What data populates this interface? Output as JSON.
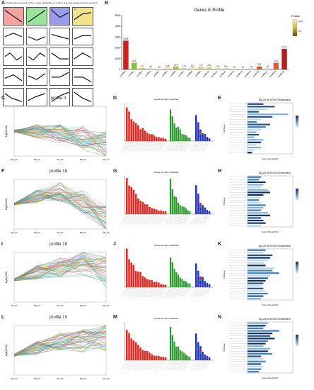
{
  "panelA": {
    "letter": "A",
    "title": "Profiles ordered based on the p-value significance of number of Genes assigned versus expected",
    "tiles": [
      {
        "id": "profile 0",
        "color": "#f4a3a0",
        "num": "0"
      },
      {
        "id": "profile 5",
        "color": "#9be29b",
        "num": "5"
      },
      {
        "id": "profile 16",
        "color": "#9b9bf0",
        "num": "16"
      },
      {
        "id": "profile 19",
        "color": "#f0e48a",
        "num": "19"
      },
      {
        "id": "p4",
        "color": "#ffffff",
        "num": ""
      },
      {
        "id": "p5",
        "color": "#ffffff",
        "num": ""
      },
      {
        "id": "p6",
        "color": "#ffffff",
        "num": ""
      },
      {
        "id": "p7",
        "color": "#ffffff",
        "num": ""
      },
      {
        "id": "p8",
        "color": "#ffffff",
        "num": ""
      },
      {
        "id": "p9",
        "color": "#ffffff",
        "num": ""
      },
      {
        "id": "p10",
        "color": "#ffffff",
        "num": ""
      },
      {
        "id": "p11",
        "color": "#ffffff",
        "num": ""
      },
      {
        "id": "p12",
        "color": "#ffffff",
        "num": ""
      },
      {
        "id": "p13",
        "color": "#ffffff",
        "num": ""
      },
      {
        "id": "p14",
        "color": "#ffffff",
        "num": ""
      },
      {
        "id": "p15",
        "color": "#ffffff",
        "num": ""
      },
      {
        "id": "p16",
        "color": "#ffffff",
        "num": ""
      },
      {
        "id": "p17",
        "color": "#ffffff",
        "num": ""
      },
      {
        "id": "p18",
        "color": "#ffffff",
        "num": ""
      },
      {
        "id": "p19",
        "color": "#ffffff",
        "num": ""
      }
    ]
  },
  "chart_data": {
    "type": "bar",
    "title": "Genes in Profile",
    "ylim": [
      0,
      5000
    ],
    "yticks": [
      0,
      1000,
      2000,
      3000,
      4000,
      5000
    ],
    "legend_title": "Pvalue",
    "legend_ticks": [
      "0.05",
      "0.1"
    ],
    "categories": [
      "profile0",
      "profile1",
      "profile2",
      "profile3",
      "profile4",
      "profile5",
      "profile6",
      "profile7",
      "profile8",
      "profile9",
      "profile10",
      "profile11",
      "profile12",
      "profile13",
      "profile14",
      "profile15",
      "profile16",
      "profile17",
      "profile18",
      "profile19"
    ],
    "values": [
      2669,
      618,
      117,
      90,
      36,
      135,
      279,
      127,
      157,
      197,
      214,
      100,
      100,
      39,
      19,
      76,
      281,
      84,
      616,
      1912
    ],
    "colors": [
      "#d02020",
      "#8cc230",
      "#c9d85a",
      "#f4eaa0",
      "#f4eaa0",
      "#f4eaa0",
      "#a8c438",
      "#f4eaa0",
      "#f4eaa0",
      "#d8dc6a",
      "#d8dc6a",
      "#f4eaa0",
      "#f4eaa0",
      "#f4eaa0",
      "#f4eaa0",
      "#f4eaa0",
      "#e05a2a",
      "#f4eaa0",
      "#e05a2a",
      "#b81e1e"
    ]
  },
  "rows": [
    {
      "letters": [
        "C",
        "D",
        "E"
      ],
      "profile_title": "profile 0",
      "ylabel": "log2(V/V0)",
      "xticks": [
        "DS_0.h",
        "DS_0.h",
        "DS_0.h",
        "DS_0.h",
        "DS_0.h"
      ],
      "go_title": "Level2 GO term classified",
      "kegg_title": "Top 20 of KEGG Enrichment",
      "kegg_xlabel": "Gene Percent(%)",
      "kegg_ylabel": "Pathway",
      "kegg_bars": [
        0.35,
        0.6,
        0.45,
        0.25,
        0.9,
        0.55,
        0.3,
        0.2,
        0.5,
        0.4,
        0.3,
        0.2,
        0.25,
        0.15,
        0.35,
        0.3,
        0.2,
        0.3,
        0.15,
        0.1
      ]
    },
    {
      "letters": [
        "F",
        "G",
        "H"
      ],
      "profile_title": "profile 16",
      "ylabel": "log2(V/V0)",
      "xticks": [
        "DS_0.h",
        "DS_0.h",
        "DS_0.h",
        "DS_0.h",
        "DS_0.h"
      ],
      "go_title": "Level2 GO term classified",
      "kegg_title": "Top 20 of KEGG Enrichment",
      "kegg_xlabel": "Gene Percent(%)",
      "kegg_ylabel": "Pathway",
      "kegg_bars": [
        0.3,
        0.25,
        0.4,
        0.35,
        0.3,
        0.45,
        0.5,
        0.35,
        0.3,
        0.25,
        0.3,
        0.4,
        0.35,
        0.3,
        0.45,
        0.5,
        0.3,
        0.35,
        0.4,
        0.3
      ]
    },
    {
      "letters": [
        "I",
        "J",
        "K"
      ],
      "profile_title": "profile 18",
      "ylabel": "log2(V/V0)",
      "xticks": [
        "DS_0.h",
        "DS_0.h",
        "DS_0.h",
        "DS_0.h",
        "DS_0.h"
      ],
      "go_title": "Level2 GO term classified",
      "kegg_title": "Top 20 of KEGG Enrichment",
      "kegg_xlabel": "Gene Percent(%)",
      "kegg_ylabel": "Pathway",
      "kegg_bars": [
        0.4,
        0.35,
        0.55,
        0.5,
        0.45,
        0.35,
        0.4,
        0.6,
        0.55,
        0.7,
        0.5,
        0.45,
        0.4,
        0.35,
        0.3,
        0.35,
        0.4,
        0.45,
        0.35,
        0.3
      ]
    },
    {
      "letters": [
        "L",
        "M",
        "N"
      ],
      "profile_title": "profile 19",
      "ylabel": "log2(V/V0)",
      "xticks": [
        "DS_0.h",
        "DS_0.h",
        "DS_0.h",
        "DS_0.h",
        "DS_0.h"
      ],
      "go_title": "Level2 GO term classified",
      "kegg_title": "Top 20 of KEGG Enrichment",
      "kegg_xlabel": "Gene Percent(%)",
      "kegg_ylabel": "Pathway",
      "kegg_bars": [
        0.45,
        0.4,
        0.35,
        0.7,
        0.55,
        0.5,
        0.6,
        0.45,
        0.4,
        0.35,
        0.5,
        0.45,
        0.55,
        0.3,
        0.35,
        0.4,
        0.3,
        0.35,
        0.3,
        0.25
      ]
    }
  ]
}
